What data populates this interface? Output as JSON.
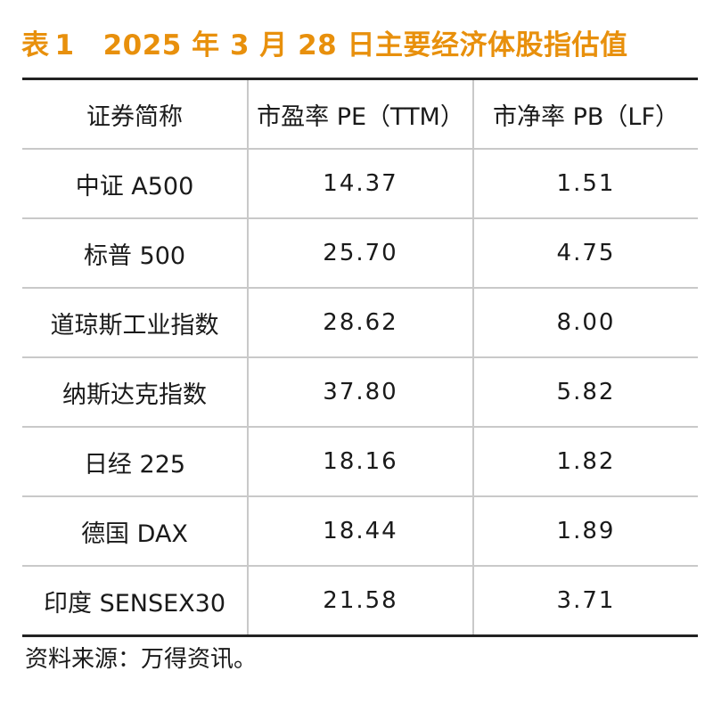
{
  "title": {
    "label": "表",
    "number": "1",
    "text": "2025 年 3 月 28 日主要经济体股指估值"
  },
  "table": {
    "headers": [
      "证券简称",
      "市盈率 PE（TTM）",
      "市净率 PB（LF）"
    ],
    "rows": [
      [
        "中证 A500",
        "14.37",
        "1.51"
      ],
      [
        "标普 500",
        "25.70",
        "4.75"
      ],
      [
        "道琼斯工业指数",
        "28.62",
        "8.00"
      ],
      [
        "纳斯达克指数",
        "37.80",
        "5.82"
      ],
      [
        "日经 225",
        "18.16",
        "1.82"
      ],
      [
        "德国 DAX",
        "18.44",
        "1.89"
      ],
      [
        "印度 SENSEX30",
        "21.58",
        "3.71"
      ]
    ]
  },
  "source": "资料来源：万得资讯。",
  "colors": {
    "title": "#e8900c",
    "rule_heavy": "#222222",
    "rule_light": "#c9c9c9"
  }
}
